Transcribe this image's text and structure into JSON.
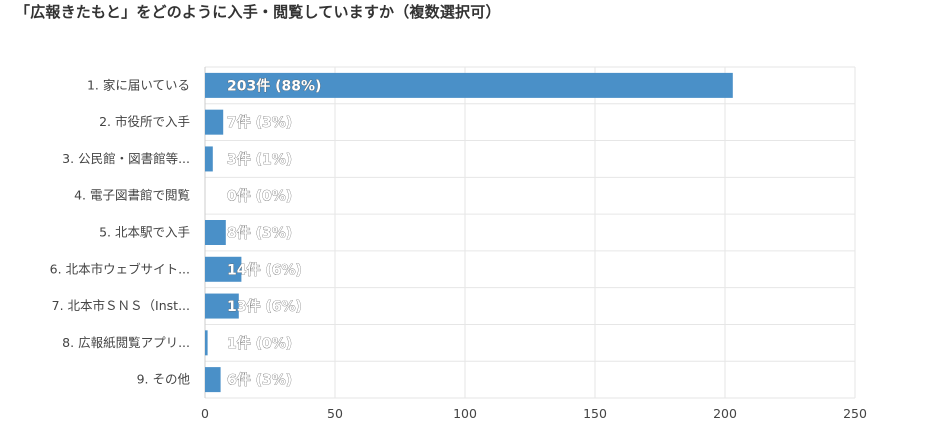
{
  "chart_data": {
    "type": "bar",
    "orientation": "horizontal",
    "title": "「広報きたもと」をどのように入手・閲覧していますか（複数選択可）",
    "categories": [
      "1. 家に届いている",
      "2. 市役所で入手",
      "3. 公民館・図書館等...",
      "4. 電子図書館で閲覧",
      "5. 北本駅で入手",
      "6. 北本市ウェブサイト...",
      "7. 北本市ＳＮＳ（Inst...",
      "8. 広報紙閲覧アプリ...",
      "9. その他"
    ],
    "values": [
      203,
      7,
      3,
      0,
      8,
      14,
      13,
      1,
      6
    ],
    "data_labels": [
      "203件 (88%)",
      "7件 (3%)",
      "3件 (1%)",
      "0件 (0%)",
      "8件 (3%)",
      "14件 (6%)",
      "13件 (6%)",
      "1件 (0%)",
      "6件 (3%)"
    ],
    "xlim": [
      0,
      250
    ],
    "xticks": [
      0,
      50,
      100,
      150,
      200,
      250
    ],
    "xlabel": "",
    "ylabel": "",
    "grid": true,
    "bar_color": "#4a90c8",
    "grid_color": "#e6e6e6"
  }
}
